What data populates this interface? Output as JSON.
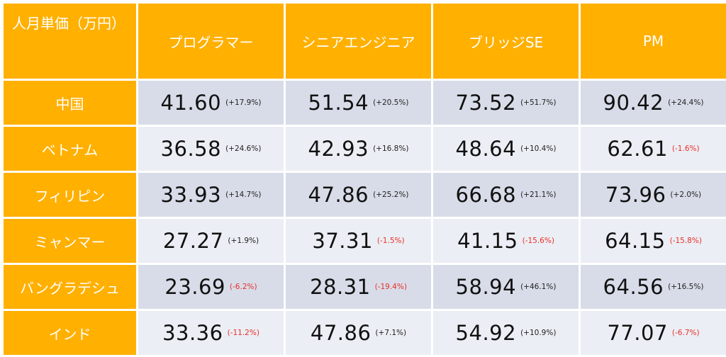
{
  "chart_data": {
    "type": "table",
    "corner_label": "人月単価（万円）",
    "columns": [
      "プログラマー",
      "シニアエンジニア",
      "ブリッジSE",
      "PM"
    ],
    "rows": [
      {
        "country": "中国",
        "cells": [
          {
            "value": "41.60",
            "change": "(+17.9%)",
            "direction": "up"
          },
          {
            "value": "51.54",
            "change": "(+20.5%)",
            "direction": "up"
          },
          {
            "value": "73.52",
            "change": "(+51.7%)",
            "direction": "up"
          },
          {
            "value": "90.42",
            "change": "(+24.4%)",
            "direction": "up"
          }
        ]
      },
      {
        "country": "ベトナム",
        "cells": [
          {
            "value": "36.58",
            "change": "(+24.6%)",
            "direction": "up"
          },
          {
            "value": "42.93",
            "change": "(+16.8%)",
            "direction": "up"
          },
          {
            "value": "48.64",
            "change": "(+10.4%)",
            "direction": "up"
          },
          {
            "value": "62.61",
            "change": "(-1.6%)",
            "direction": "down"
          }
        ]
      },
      {
        "country": "フィリピン",
        "cells": [
          {
            "value": "33.93",
            "change": "(+14.7%)",
            "direction": "up"
          },
          {
            "value": "47.86",
            "change": "(+25.2%)",
            "direction": "up"
          },
          {
            "value": "66.68",
            "change": "(+21.1%)",
            "direction": "up"
          },
          {
            "value": "73.96",
            "change": "(+2.0%)",
            "direction": "up"
          }
        ]
      },
      {
        "country": "ミャンマー",
        "cells": [
          {
            "value": "27.27",
            "change": "(+1.9%)",
            "direction": "up"
          },
          {
            "value": "37.31",
            "change": "(-1.5%)",
            "direction": "down"
          },
          {
            "value": "41.15",
            "change": "(-15.6%)",
            "direction": "down"
          },
          {
            "value": "64.15",
            "change": "(-15.8%)",
            "direction": "down"
          }
        ]
      },
      {
        "country": "バングラデシュ",
        "cells": [
          {
            "value": "23.69",
            "change": "(-6.2%)",
            "direction": "down"
          },
          {
            "value": "28.31",
            "change": "(-19.4%)",
            "direction": "down"
          },
          {
            "value": "58.94",
            "change": "(+46.1%)",
            "direction": "up"
          },
          {
            "value": "64.56",
            "change": "(+16.5%)",
            "direction": "up"
          }
        ]
      },
      {
        "country": "インド",
        "cells": [
          {
            "value": "33.36",
            "change": "(-11.2%)",
            "direction": "down"
          },
          {
            "value": "47.86",
            "change": "(+7.1%)",
            "direction": "up"
          },
          {
            "value": "54.92",
            "change": "(+10.9%)",
            "direction": "up"
          },
          {
            "value": "77.07",
            "change": "(-6.7%)",
            "direction": "down"
          }
        ]
      }
    ]
  },
  "colors": {
    "header_bg": "#FFB000",
    "header_text": "#FFFFFF",
    "row_odd_bg": "#D8DCE8",
    "row_even_bg": "#EBEEF4",
    "up_text": "#222222",
    "down_text": "#E8302A"
  }
}
